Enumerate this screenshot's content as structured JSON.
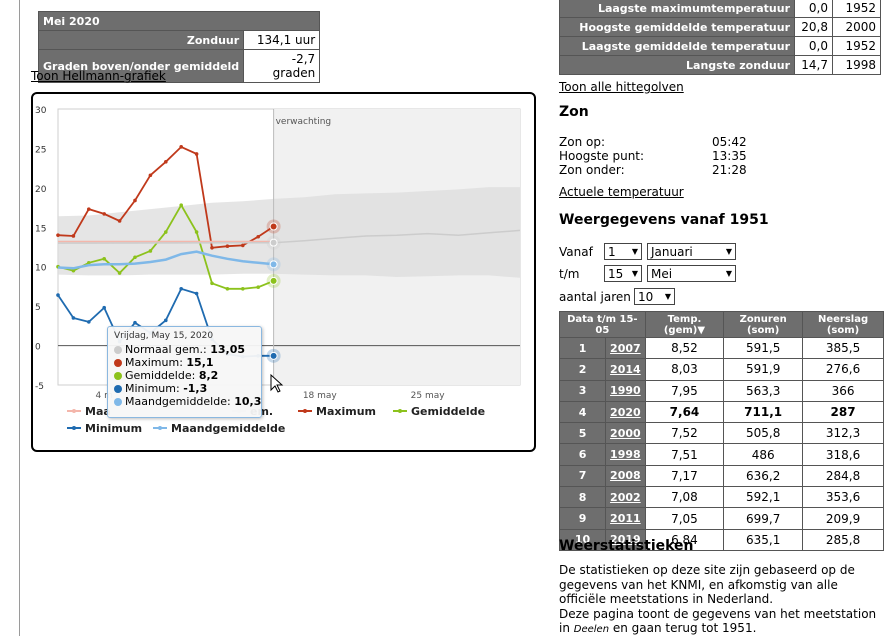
{
  "month_summary": {
    "title": "Mei 2020",
    "rows": [
      {
        "label": "Zonduur",
        "value": "134,1 uur"
      },
      {
        "label": "Graden boven/onder gemiddeld",
        "value": "-2,7 graden"
      }
    ]
  },
  "hellmann_link": "Toon Hellmann-grafiek",
  "records": [
    {
      "label": "Laagste maximumtemperatuur",
      "value": "0,0",
      "year": "1952"
    },
    {
      "label": "Hoogste gemiddelde temperatuur",
      "value": "20,8",
      "year": "2000"
    },
    {
      "label": "Laagste gemiddelde temperatuur",
      "value": "0,0",
      "year": "1952"
    },
    {
      "label": "Langste zonduur",
      "value": "14,7",
      "year": "1998"
    }
  ],
  "heatwave_link": "Toon alle hittegolven",
  "sun": {
    "heading": "Zon",
    "rows": [
      {
        "label": "Zon op:",
        "value": "05:42"
      },
      {
        "label": "Hoogste punt:",
        "value": "13:35"
      },
      {
        "label": "Zon onder:",
        "value": "21:28"
      }
    ]
  },
  "actual_temp_link": "Actuele temperatuur",
  "weergegevens": {
    "heading": "Weergegevens vanaf 1951",
    "vanaf_label": "Vanaf",
    "vanaf_day": "1",
    "vanaf_month": "Januari",
    "tm_label": "t/m",
    "tm_day": "15",
    "tm_month": "Mei",
    "years_label": "aantal jaren",
    "years_value": "10"
  },
  "ranking": {
    "headers": [
      "Data t/m 15-05",
      "Temp. (gem)▼",
      "Zonuren (som)",
      "Neerslag (som)"
    ],
    "rows": [
      {
        "rank": "1",
        "year": "2007",
        "temp": "8,52",
        "sun": "591,5",
        "rain": "385,5"
      },
      {
        "rank": "2",
        "year": "2014",
        "temp": "8,03",
        "sun": "591,9",
        "rain": "276,6"
      },
      {
        "rank": "3",
        "year": "1990",
        "temp": "7,95",
        "sun": "563,3",
        "rain": "366"
      },
      {
        "rank": "4",
        "year": "2020",
        "temp": "7,64",
        "sun": "711,1",
        "rain": "287"
      },
      {
        "rank": "5",
        "year": "2000",
        "temp": "7,52",
        "sun": "505,8",
        "rain": "312,3"
      },
      {
        "rank": "6",
        "year": "1998",
        "temp": "7,51",
        "sun": "486",
        "rain": "318,6"
      },
      {
        "rank": "7",
        "year": "2008",
        "temp": "7,17",
        "sun": "636,2",
        "rain": "284,8"
      },
      {
        "rank": "8",
        "year": "2002",
        "temp": "7,08",
        "sun": "592,1",
        "rain": "353,6"
      },
      {
        "rank": "9",
        "year": "2011",
        "temp": "7,05",
        "sun": "699,7",
        "rain": "209,9"
      },
      {
        "rank": "10",
        "year": "2019",
        "temp": "6,84",
        "sun": "635,1",
        "rain": "285,8"
      }
    ],
    "highlight_year": "2020"
  },
  "stats": {
    "heading": "Weerstatistieken",
    "p1": "De statistieken op deze site zijn gebaseerd op de gegevens van het KNMI, en afkomstig van alle officiële meetstations in Nederland.",
    "p2_a": "Deze pagina toont de gegevens van het meetstation in ",
    "p2_station": "Deelen",
    "p2_b": " en gaan terug tot 1951."
  },
  "tooltip": {
    "date": "Vrijdag, May 15, 2020",
    "rows": [
      {
        "label": "Normaal gem.:",
        "value": "13,05",
        "color": "#cccccc"
      },
      {
        "label": "Maximum:",
        "value": "15,1",
        "color": "#c0391b"
      },
      {
        "label": "Gemiddelde:",
        "value": "8,2",
        "color": "#8cc21c"
      },
      {
        "label": "Minimum:",
        "value": "-1,3",
        "color": "#1f6bb0"
      },
      {
        "label": "Maandgemiddelde:",
        "value": "10,3",
        "color": "#7fb8e8"
      }
    ]
  },
  "chart_data": {
    "type": "line",
    "forecast_label": "verwachting",
    "ylim": [
      -5,
      30
    ],
    "yticks": [
      -5,
      0,
      5,
      10,
      15,
      20,
      25,
      30
    ],
    "xlim": [
      1,
      31
    ],
    "xticks": [
      {
        "day": 4,
        "label": "4 m"
      },
      {
        "day": 18,
        "label": "18 may"
      },
      {
        "day": 25,
        "label": "25 may"
      }
    ],
    "forecast_start_day": 15,
    "series": [
      {
        "name": "Maximum",
        "color": "#c0391b",
        "x": [
          1,
          2,
          3,
          4,
          5,
          6,
          7,
          8,
          9,
          10,
          11,
          12,
          13,
          14,
          15
        ],
        "y": [
          14.0,
          13.9,
          17.3,
          16.7,
          15.8,
          18.4,
          21.6,
          23.3,
          25.2,
          24.3,
          12.4,
          12.6,
          12.7,
          13.8,
          15.1
        ]
      },
      {
        "name": "Gemiddelde",
        "color": "#8cc21c",
        "x": [
          1,
          2,
          3,
          4,
          5,
          6,
          7,
          8,
          9,
          10,
          11,
          12,
          13,
          14,
          15
        ],
        "y": [
          10.0,
          9.5,
          10.5,
          11.0,
          9.2,
          11.2,
          12.0,
          14.4,
          17.8,
          14.4,
          7.9,
          7.2,
          7.2,
          7.4,
          8.2
        ]
      },
      {
        "name": "Minimum",
        "color": "#1f6bb0",
        "x": [
          1,
          2,
          3,
          4,
          5,
          6,
          7,
          8,
          9,
          10,
          11,
          12,
          13,
          14,
          15
        ],
        "y": [
          6.4,
          3.5,
          3.0,
          4.8,
          0.5,
          2.9,
          1.6,
          3.2,
          7.2,
          6.6,
          0.8,
          -1.1,
          -1.4,
          -1.3,
          -1.3
        ]
      },
      {
        "name": "Maandgemiddelde",
        "color": "#7fb8e8",
        "x": [
          1,
          2,
          3,
          4,
          5,
          6,
          7,
          8,
          9,
          10,
          11,
          12,
          13,
          14,
          15
        ],
        "y": [
          9.9,
          9.8,
          10.2,
          10.3,
          10.3,
          10.4,
          10.6,
          10.9,
          11.6,
          11.9,
          11.4,
          11.0,
          10.7,
          10.5,
          10.3
        ]
      },
      {
        "name": "Maximum normaal",
        "color": "#f4b6ab",
        "x": [
          1,
          15
        ],
        "y": [
          13.2,
          13.2
        ]
      },
      {
        "name": "Normaal gem.",
        "color": "#cccccc",
        "x": [
          1,
          15,
          17,
          19,
          21,
          23,
          25,
          27,
          29,
          31
        ],
        "y": [
          13.0,
          13.05,
          13.3,
          13.6,
          13.9,
          14.0,
          14.2,
          14.0,
          14.3,
          14.6
        ]
      }
    ],
    "band": {
      "x": [
        1,
        3,
        5,
        7,
        9,
        11,
        13,
        15,
        17,
        19,
        21,
        23,
        25,
        27,
        29,
        31
      ],
      "upper": [
        16.4,
        16.5,
        16.9,
        17.3,
        17.7,
        18.1,
        18.3,
        18.6,
        18.8,
        19.2,
        19.3,
        19.4,
        19.6,
        19.8,
        20.1,
        20.1
      ],
      "lower": [
        9.0,
        8.9,
        8.9,
        9.0,
        9.0,
        9.0,
        9.1,
        9.1,
        9.0,
        8.9,
        8.9,
        8.7,
        8.8,
        8.9,
        8.9,
        8.6
      ]
    },
    "legend": [
      {
        "label": "Maximum",
        "color": "#c0391b"
      },
      {
        "label": "Gemiddelde",
        "color": "#8cc21c"
      },
      {
        "label": "Minimum",
        "color": "#1f6bb0"
      },
      {
        "label": "Maandgemiddelde",
        "color": "#7fb8e8"
      }
    ],
    "legend_partial": [
      {
        "text": "Maa",
        "color": "#f4b6ab"
      },
      {
        "text": "em.",
        "color": "#cccccc"
      }
    ]
  }
}
